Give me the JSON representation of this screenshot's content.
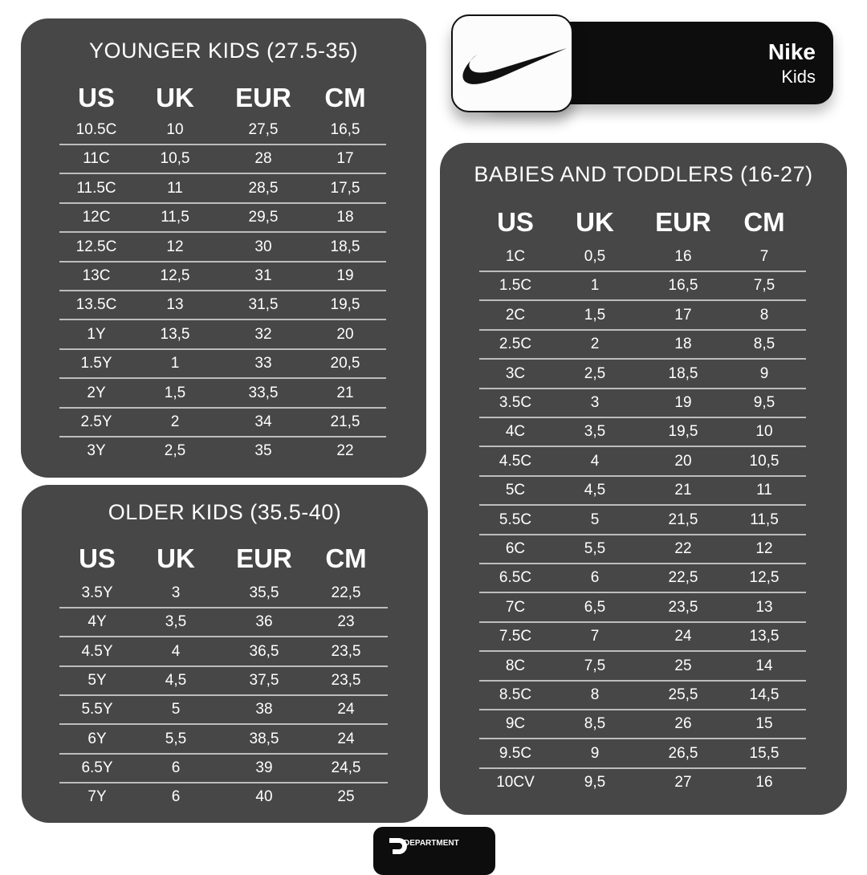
{
  "brand": {
    "name": "Nike",
    "subtitle": "Kids",
    "logo": "nike-swoosh",
    "footer_logo_text": "DEPARTMENT"
  },
  "colors": {
    "panel": "#474747",
    "brand_bar": "#0d0d0d",
    "background": "#ffffff"
  },
  "columns": [
    "US",
    "UK",
    "EUR",
    "CM"
  ],
  "younger": {
    "title": "YOUNGER KIDS (27.5-35)",
    "rows": [
      [
        "10.5C",
        "10",
        "27,5",
        "16,5"
      ],
      [
        "11C",
        "10,5",
        "28",
        "17"
      ],
      [
        "11.5C",
        "11",
        "28,5",
        "17,5"
      ],
      [
        "12C",
        "11,5",
        "29,5",
        "18"
      ],
      [
        "12.5C",
        "12",
        "30",
        "18,5"
      ],
      [
        "13C",
        "12,5",
        "31",
        "19"
      ],
      [
        "13.5C",
        "13",
        "31,5",
        "19,5"
      ],
      [
        "1Y",
        "13,5",
        "32",
        "20"
      ],
      [
        "1.5Y",
        "1",
        "33",
        "20,5"
      ],
      [
        "2Y",
        "1,5",
        "33,5",
        "21"
      ],
      [
        "2.5Y",
        "2",
        "34",
        "21,5"
      ],
      [
        "3Y",
        "2,5",
        "35",
        "22"
      ]
    ]
  },
  "older": {
    "title": "OLDER KIDS (35.5-40)",
    "rows": [
      [
        "3.5Y",
        "3",
        "35,5",
        "22,5"
      ],
      [
        "4Y",
        "3,5",
        "36",
        "23"
      ],
      [
        "4.5Y",
        "4",
        "36,5",
        "23,5"
      ],
      [
        "5Y",
        "4,5",
        "37,5",
        "23,5"
      ],
      [
        "5.5Y",
        "5",
        "38",
        "24"
      ],
      [
        "6Y",
        "5,5",
        "38,5",
        "24"
      ],
      [
        "6.5Y",
        "6",
        "39",
        "24,5"
      ],
      [
        "7Y",
        "6",
        "40",
        "25"
      ]
    ]
  },
  "babies": {
    "title": "BABIES AND TODDLERS (16-27)",
    "rows": [
      [
        "1C",
        "0,5",
        "16",
        "7"
      ],
      [
        "1.5C",
        "1",
        "16,5",
        "7,5"
      ],
      [
        "2C",
        "1,5",
        "17",
        "8"
      ],
      [
        "2.5C",
        "2",
        "18",
        "8,5"
      ],
      [
        "3C",
        "2,5",
        "18,5",
        "9"
      ],
      [
        "3.5C",
        "3",
        "19",
        "9,5"
      ],
      [
        "4C",
        "3,5",
        "19,5",
        "10"
      ],
      [
        "4.5C",
        "4",
        "20",
        "10,5"
      ],
      [
        "5C",
        "4,5",
        "21",
        "11"
      ],
      [
        "5.5C",
        "5",
        "21,5",
        "11,5"
      ],
      [
        "6C",
        "5,5",
        "22",
        "12"
      ],
      [
        "6.5C",
        "6",
        "22,5",
        "12,5"
      ],
      [
        "7C",
        "6,5",
        "23,5",
        "13"
      ],
      [
        "7.5C",
        "7",
        "24",
        "13,5"
      ],
      [
        "8C",
        "7,5",
        "25",
        "14"
      ],
      [
        "8.5C",
        "8",
        "25,5",
        "14,5"
      ],
      [
        "9C",
        "8,5",
        "26",
        "15"
      ],
      [
        "9.5C",
        "9",
        "26,5",
        "15,5"
      ],
      [
        "10CV",
        "9,5",
        "27",
        "16"
      ]
    ]
  }
}
